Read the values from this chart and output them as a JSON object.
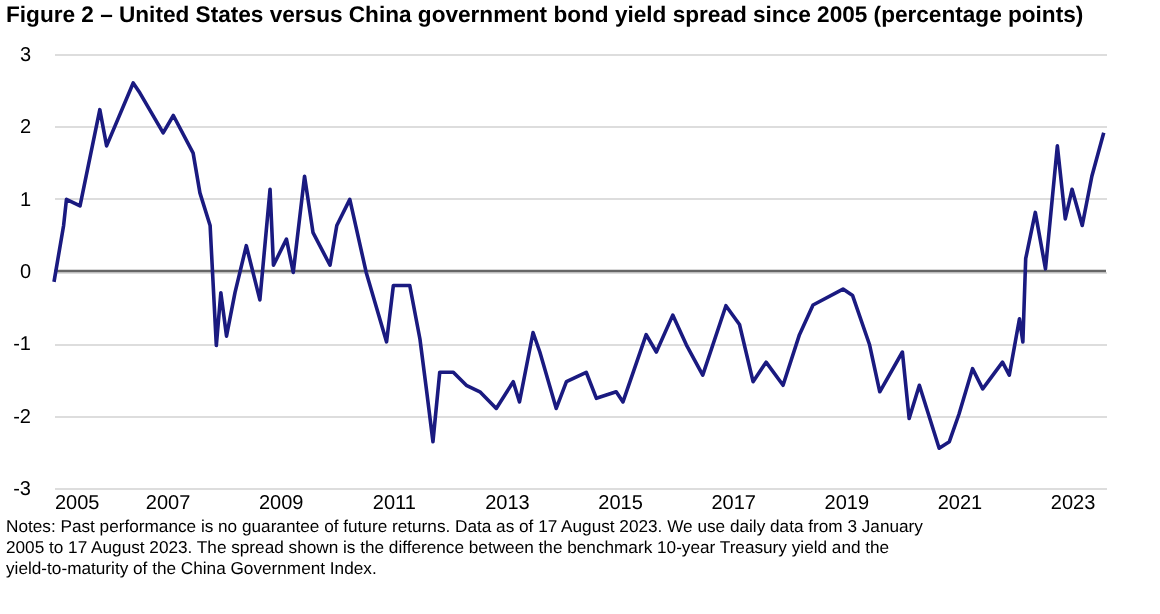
{
  "chart_data": {
    "type": "line",
    "title": "Figure 2 – United States versus China government bond yield spread since 2005 (percentage points)",
    "annotations": [
      "Notes: Past performance is no guarantee of future returns. Data as of 17 August 2023. We use daily data from 3 January 2005 to 17 August 2023. The spread shown is the difference between the benchmark 10-year Treasury yield and the yield-to-maturity of the China Government Index."
    ],
    "x": [
      2005.0,
      2005.17,
      2005.22,
      2005.46,
      2005.81,
      2005.93,
      2006.4,
      2006.52,
      2006.93,
      2007.11,
      2007.46,
      2007.58,
      2007.76,
      2007.87,
      2007.95,
      2008.05,
      2008.2,
      2008.4,
      2008.64,
      2008.82,
      2008.88,
      2009.11,
      2009.23,
      2009.43,
      2009.58,
      2009.88,
      2010.0,
      2010.23,
      2010.52,
      2010.88,
      2011.0,
      2011.29,
      2011.47,
      2011.59,
      2011.7,
      2011.82,
      2012.06,
      2012.29,
      2012.53,
      2012.82,
      2013.12,
      2013.23,
      2013.47,
      2013.59,
      2013.88,
      2014.06,
      2014.41,
      2014.59,
      2014.94,
      2015.06,
      2015.47,
      2015.65,
      2015.94,
      2016.18,
      2016.47,
      2016.88,
      2017.12,
      2017.36,
      2017.59,
      2017.89,
      2018.18,
      2018.42,
      2018.95,
      2019.12,
      2019.42,
      2019.6,
      2020.0,
      2020.12,
      2020.3,
      2020.65,
      2020.83,
      2021.0,
      2021.24,
      2021.42,
      2021.77,
      2021.89,
      2022.07,
      2022.13,
      2022.18,
      2022.35,
      2022.53,
      2022.74,
      2022.88,
      2023.0,
      2023.18,
      2023.35,
      2023.56
    ],
    "series": [
      {
        "color": "#1a1a80",
        "values": [
          -0.15,
          0.63,
          0.99,
          0.9,
          2.23,
          1.73,
          2.6,
          2.46,
          1.91,
          2.15,
          1.63,
          1.08,
          0.63,
          -1.03,
          -0.3,
          -0.9,
          -0.3,
          0.35,
          -0.4,
          1.13,
          0.08,
          0.44,
          -0.02,
          1.31,
          0.53,
          0.08,
          0.63,
          0.99,
          -0.02,
          -0.98,
          -0.2,
          -0.2,
          -0.94,
          -1.67,
          -2.36,
          -1.4,
          -1.4,
          -1.58,
          -1.67,
          -1.9,
          -1.53,
          -1.81,
          -0.85,
          -1.12,
          -1.9,
          -1.53,
          -1.4,
          -1.76,
          -1.67,
          -1.81,
          -0.88,
          -1.12,
          -0.61,
          -1.02,
          -1.44,
          -0.48,
          -0.74,
          -1.53,
          -1.26,
          -1.58,
          -0.88,
          -0.47,
          -0.25,
          -0.34,
          -1.02,
          -1.67,
          -1.12,
          -2.04,
          -1.58,
          -2.45,
          -2.36,
          -1.98,
          -1.35,
          -1.63,
          -1.26,
          -1.44,
          -0.66,
          -0.98,
          0.17,
          0.81,
          0.03,
          1.73,
          0.72,
          1.13,
          0.63,
          1.31,
          1.91
        ]
      }
    ],
    "xlim": [
      2005,
      2023.6
    ],
    "xticks": [
      2005,
      2007,
      2009,
      2011,
      2013,
      2015,
      2017,
      2019,
      2021,
      2023
    ],
    "ylim": [
      -3,
      3
    ],
    "yticks": [
      -3,
      -2,
      -1,
      0,
      1,
      2,
      3
    ],
    "grid": "y",
    "marker": "none",
    "line_style": "solid"
  }
}
